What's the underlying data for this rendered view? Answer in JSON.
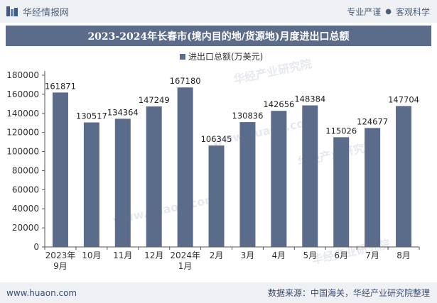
{
  "header": {
    "brand_name": "华经情报网",
    "slogan_left": "专业严谨",
    "slogan_dot": "●",
    "slogan_right": "客观科学"
  },
  "chart_data": {
    "type": "bar",
    "title": "2023-2024年长春市(境内目的地/货源地)月度进出口总额",
    "series": [
      {
        "name": "进出口总额(万美元)",
        "values": [
          161871,
          130517,
          134364,
          147249,
          167180,
          106345,
          130836,
          142656,
          148384,
          115026,
          124677,
          147704
        ]
      }
    ],
    "categories": [
      [
        "2023年",
        "9月"
      ],
      [
        "10月"
      ],
      [
        "11月"
      ],
      [
        "12月"
      ],
      [
        "2024年",
        "1月"
      ],
      [
        "2月"
      ],
      [
        "3月"
      ],
      [
        "4月"
      ],
      [
        "5月"
      ],
      [
        "6月"
      ],
      [
        "7月"
      ],
      [
        "8月"
      ]
    ],
    "ylim": [
      0,
      180000
    ],
    "yticks": [
      0,
      20000,
      40000,
      60000,
      80000,
      100000,
      120000,
      140000,
      160000,
      180000
    ],
    "legend_position": "top-center",
    "grid": false,
    "bar_color": "#5b6b8a",
    "watermarks": [
      "华经产业研究院",
      "www.huaon.com"
    ]
  },
  "footer": {
    "site": "www.huaon.com",
    "source": "数据来源：中国海关，华经产业研究院整理"
  }
}
